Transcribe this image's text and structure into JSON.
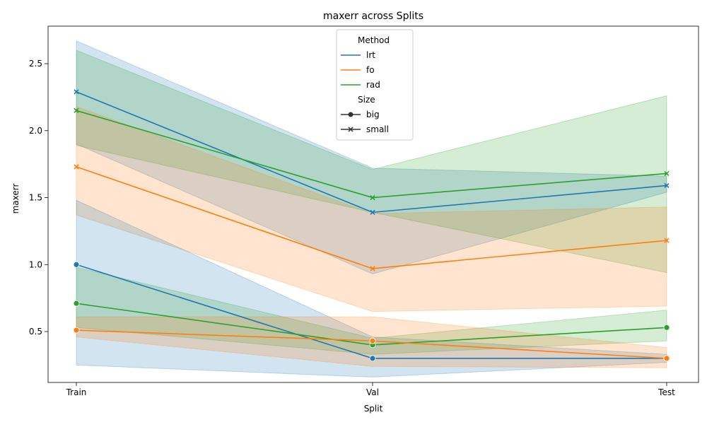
{
  "chart_data": {
    "type": "line",
    "title": "maxerr across Splits",
    "xlabel": "Split",
    "ylabel": "maxerr",
    "categories": [
      "Train",
      "Val",
      "Test"
    ],
    "ylim": [
      0.12,
      2.78
    ],
    "yticks": [
      0.5,
      1.0,
      1.5,
      2.0,
      2.5
    ],
    "grid": false,
    "legend": {
      "placement": "top-center",
      "hue_title": "Method",
      "style_title": "Size",
      "hue_entries": [
        "lrt",
        "fo",
        "rad"
      ],
      "style_entries": [
        "big",
        "small"
      ]
    },
    "colors": {
      "lrt": "#1f77b4",
      "fo": "#ff7f0e",
      "rad": "#2ca02c"
    },
    "series": [
      {
        "name": "lrt",
        "size": "small",
        "values": [
          2.29,
          1.39,
          1.59
        ],
        "ci_low": [
          1.9,
          0.93,
          1.54
        ],
        "ci_high": [
          2.67,
          1.72,
          1.66
        ]
      },
      {
        "name": "rad",
        "size": "small",
        "values": [
          2.15,
          1.5,
          1.68
        ],
        "ci_low": [
          1.89,
          1.39,
          0.94
        ],
        "ci_high": [
          2.6,
          1.71,
          2.26
        ]
      },
      {
        "name": "fo",
        "size": "small",
        "values": [
          1.73,
          0.97,
          1.18
        ],
        "ci_low": [
          1.37,
          0.65,
          0.69
        ],
        "ci_high": [
          2.18,
          1.38,
          1.43
        ]
      },
      {
        "name": "lrt",
        "size": "big",
        "values": [
          1.0,
          0.3,
          0.3
        ],
        "ci_low": [
          0.25,
          0.16,
          0.27
        ],
        "ci_high": [
          1.48,
          0.46,
          0.33
        ]
      },
      {
        "name": "rad",
        "size": "big",
        "values": [
          0.71,
          0.4,
          0.53
        ],
        "ci_low": [
          0.53,
          0.33,
          0.43
        ],
        "ci_high": [
          0.98,
          0.45,
          0.66
        ]
      },
      {
        "name": "fo",
        "size": "big",
        "values": [
          0.51,
          0.43,
          0.3
        ],
        "ci_low": [
          0.46,
          0.24,
          0.23
        ],
        "ci_high": [
          0.61,
          0.61,
          0.38
        ]
      }
    ]
  }
}
